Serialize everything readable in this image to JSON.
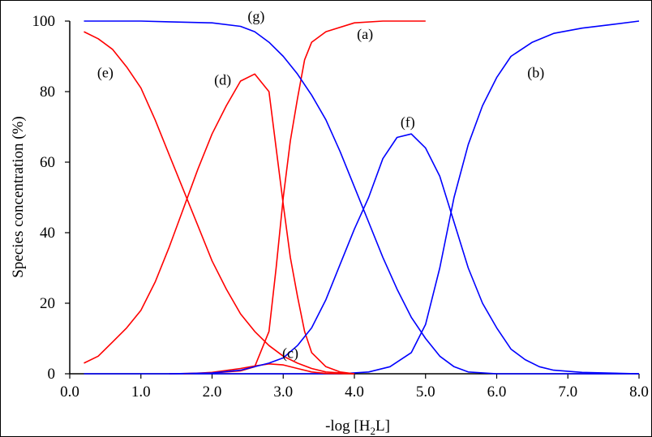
{
  "chart_data": {
    "type": "line",
    "title": "",
    "xlabel_main": "-log [H",
    "xlabel_sub": "2",
    "xlabel_end": "L]",
    "ylabel": "Species concentration  (%)",
    "xlim": [
      0,
      8
    ],
    "ylim": [
      0,
      100
    ],
    "xticks": [
      "0.0",
      "1.0",
      "2.0",
      "3.0",
      "4.0",
      "5.0",
      "6.0",
      "7.0",
      "8.0"
    ],
    "yticks": [
      "0",
      "20",
      "40",
      "60",
      "80",
      "100"
    ],
    "grid": false,
    "series": [
      {
        "label": "(a)",
        "label_at": [
          4.15,
          95
        ],
        "color": "#ff0000",
        "points": [
          [
            1.4,
            0
          ],
          [
            2.0,
            0.2
          ],
          [
            2.4,
            0.8
          ],
          [
            2.6,
            2
          ],
          [
            2.8,
            12
          ],
          [
            2.9,
            30
          ],
          [
            3.0,
            50
          ],
          [
            3.1,
            66
          ],
          [
            3.2,
            78
          ],
          [
            3.3,
            89
          ],
          [
            3.4,
            94
          ],
          [
            3.6,
            97
          ],
          [
            4.0,
            99.5
          ],
          [
            4.4,
            100
          ],
          [
            5.0,
            100
          ]
        ]
      },
      {
        "label": "(b)",
        "label_at": [
          6.55,
          84
        ],
        "color": "#0000ff",
        "points": [
          [
            0.2,
            0
          ],
          [
            3.8,
            0
          ],
          [
            4.2,
            0.5
          ],
          [
            4.5,
            2
          ],
          [
            4.8,
            6
          ],
          [
            5.0,
            14
          ],
          [
            5.2,
            30
          ],
          [
            5.4,
            50
          ],
          [
            5.6,
            65
          ],
          [
            5.8,
            76
          ],
          [
            6.0,
            84
          ],
          [
            6.2,
            90
          ],
          [
            6.5,
            94
          ],
          [
            6.8,
            96.5
          ],
          [
            7.2,
            98
          ],
          [
            7.6,
            99
          ],
          [
            8.0,
            100
          ]
        ]
      },
      {
        "label": "(c)",
        "label_at": [
          3.1,
          4.5
        ],
        "color": "#ff0000",
        "points": [
          [
            1.6,
            0
          ],
          [
            2.0,
            0.4
          ],
          [
            2.4,
            1.5
          ],
          [
            2.6,
            2.2
          ],
          [
            2.8,
            2.8
          ],
          [
            3.0,
            2.5
          ],
          [
            3.2,
            1.5
          ],
          [
            3.4,
            0.5
          ],
          [
            3.6,
            0.1
          ],
          [
            4.0,
            0
          ]
        ]
      },
      {
        "label": "(d)",
        "label_at": [
          2.15,
          82
        ],
        "color": "#ff0000",
        "points": [
          [
            0.2,
            3
          ],
          [
            0.4,
            5
          ],
          [
            0.6,
            9
          ],
          [
            0.8,
            13
          ],
          [
            1.0,
            18
          ],
          [
            1.2,
            26
          ],
          [
            1.4,
            36
          ],
          [
            1.6,
            47
          ],
          [
            1.8,
            58
          ],
          [
            2.0,
            68
          ],
          [
            2.2,
            76
          ],
          [
            2.4,
            83
          ],
          [
            2.6,
            85
          ],
          [
            2.8,
            80
          ],
          [
            2.9,
            64
          ],
          [
            3.0,
            48
          ],
          [
            3.1,
            33
          ],
          [
            3.2,
            22
          ],
          [
            3.3,
            12
          ],
          [
            3.4,
            6
          ],
          [
            3.6,
            2
          ],
          [
            3.8,
            0.5
          ],
          [
            4.0,
            0
          ]
        ]
      },
      {
        "label": "(e)",
        "label_at": [
          0.5,
          84
        ],
        "color": "#ff0000",
        "points": [
          [
            0.2,
            97
          ],
          [
            0.4,
            95
          ],
          [
            0.6,
            92
          ],
          [
            0.8,
            87
          ],
          [
            1.0,
            81
          ],
          [
            1.2,
            72
          ],
          [
            1.4,
            62
          ],
          [
            1.6,
            52
          ],
          [
            1.8,
            42
          ],
          [
            2.0,
            32
          ],
          [
            2.2,
            24
          ],
          [
            2.4,
            17
          ],
          [
            2.6,
            12
          ],
          [
            2.8,
            8
          ],
          [
            3.0,
            5
          ],
          [
            3.2,
            3
          ],
          [
            3.4,
            1.5
          ],
          [
            3.6,
            0.5
          ],
          [
            4.0,
            0
          ]
        ]
      },
      {
        "label": "(f)",
        "label_at": [
          4.75,
          70
        ],
        "color": "#0000ff",
        "points": [
          [
            1.4,
            0
          ],
          [
            2.0,
            0.2
          ],
          [
            2.4,
            1
          ],
          [
            2.8,
            3
          ],
          [
            3.0,
            4.5
          ],
          [
            3.2,
            8
          ],
          [
            3.4,
            13
          ],
          [
            3.6,
            21
          ],
          [
            3.8,
            31
          ],
          [
            4.0,
            41
          ],
          [
            4.2,
            50
          ],
          [
            4.4,
            61
          ],
          [
            4.6,
            67
          ],
          [
            4.8,
            68
          ],
          [
            5.0,
            64
          ],
          [
            5.2,
            56
          ],
          [
            5.4,
            43
          ],
          [
            5.6,
            30
          ],
          [
            5.8,
            20
          ],
          [
            6.0,
            13
          ],
          [
            6.2,
            7
          ],
          [
            6.4,
            4
          ],
          [
            6.6,
            2
          ],
          [
            6.8,
            1
          ],
          [
            7.2,
            0.4
          ],
          [
            8.0,
            0
          ]
        ]
      },
      {
        "label": "(g)",
        "label_at": [
          2.62,
          100
        ],
        "color": "#0000ff",
        "points": [
          [
            0.2,
            100
          ],
          [
            1.0,
            100
          ],
          [
            1.4,
            99.8
          ],
          [
            2.0,
            99.5
          ],
          [
            2.4,
            98.5
          ],
          [
            2.6,
            97
          ],
          [
            2.8,
            94
          ],
          [
            3.0,
            90
          ],
          [
            3.2,
            85
          ],
          [
            3.4,
            79
          ],
          [
            3.6,
            72
          ],
          [
            3.8,
            63
          ],
          [
            4.0,
            53
          ],
          [
            4.2,
            43
          ],
          [
            4.4,
            33
          ],
          [
            4.6,
            24
          ],
          [
            4.8,
            16
          ],
          [
            5.0,
            10
          ],
          [
            5.2,
            5
          ],
          [
            5.4,
            2
          ],
          [
            5.6,
            0.5
          ],
          [
            6.0,
            0
          ],
          [
            8.0,
            0
          ]
        ]
      }
    ]
  }
}
